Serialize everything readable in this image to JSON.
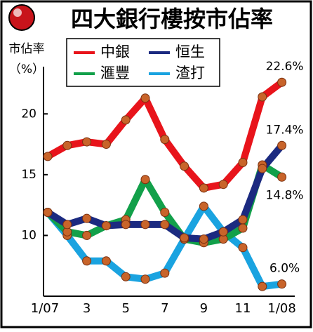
{
  "chart_data": {
    "type": "line",
    "title": "四大銀行樓按市佔率",
    "y_label_lines": [
      "市佔率",
      "（%）"
    ],
    "categories": [
      "1/07",
      null,
      "3",
      null,
      "5",
      null,
      "7",
      null,
      "9",
      null,
      "11",
      null,
      "1/08"
    ],
    "series": [
      {
        "name": "渣打",
        "color": "#1aa3e0",
        "values": [
          11.9,
          10.0,
          7.9,
          7.9,
          6.6,
          6.4,
          6.9,
          9.7,
          12.4,
          10.3,
          9.0,
          5.8,
          6.0
        ],
        "value_labels": [
          null,
          null,
          null,
          null,
          null,
          null,
          null,
          null,
          null,
          null,
          null,
          null,
          "6.0%"
        ]
      },
      {
        "name": "滙豐",
        "color": "#12a04a",
        "values": [
          11.9,
          10.3,
          10.0,
          10.8,
          11.3,
          14.6,
          11.9,
          9.7,
          9.4,
          9.7,
          10.6,
          15.8,
          14.8
        ],
        "value_labels": [
          null,
          null,
          null,
          null,
          null,
          null,
          null,
          null,
          null,
          null,
          null,
          null,
          "14.8%"
        ]
      },
      {
        "name": "恒生",
        "color": "#1b2a80",
        "values": [
          11.9,
          10.9,
          11.4,
          10.8,
          10.9,
          10.9,
          10.9,
          9.8,
          9.7,
          10.3,
          11.3,
          15.5,
          17.4
        ],
        "value_labels": [
          null,
          null,
          null,
          null,
          null,
          null,
          null,
          null,
          null,
          null,
          null,
          null,
          "17.4%"
        ]
      },
      {
        "name": "中銀",
        "color": "#e8141b",
        "values": [
          16.5,
          17.4,
          17.7,
          17.5,
          19.5,
          21.3,
          17.9,
          15.7,
          13.9,
          14.2,
          16.0,
          21.4,
          22.6
        ],
        "value_labels": [
          null,
          null,
          null,
          null,
          null,
          null,
          null,
          null,
          null,
          null,
          null,
          null,
          "22.6%"
        ]
      }
    ],
    "marker_color": "#c8642a",
    "ylim": [
      5,
      24
    ],
    "yticks": [
      10,
      15,
      20
    ]
  }
}
